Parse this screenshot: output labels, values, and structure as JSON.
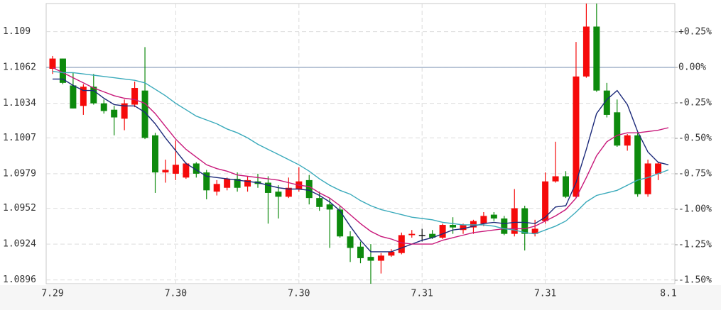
{
  "chart_data": {
    "type": "candlestick",
    "categories": [
      "7.29",
      null,
      null,
      null,
      null,
      null,
      null,
      null,
      null,
      null,
      null,
      null,
      "7.30",
      null,
      null,
      null,
      null,
      null,
      null,
      null,
      null,
      null,
      null,
      null,
      "7.30",
      null,
      null,
      null,
      null,
      null,
      null,
      null,
      null,
      null,
      null,
      null,
      "7.31",
      null,
      null,
      null,
      null,
      null,
      null,
      null,
      null,
      null,
      null,
      null,
      "7.31",
      null,
      null,
      null,
      null,
      null,
      null,
      null,
      null,
      null,
      null,
      null,
      "8.1"
    ],
    "open": [
      1.1061,
      1.1069,
      1.1048,
      1.1032,
      1.1047,
      1.1034,
      1.1029,
      1.1022,
      1.1033,
      1.1044,
      1.1009,
      1.098,
      1.0979,
      1.0976,
      1.0987,
      1.098,
      1.0965,
      1.0968,
      1.0975,
      1.0969,
      1.0973,
      1.0972,
      1.0965,
      1.0961,
      1.0967,
      1.0974,
      1.096,
      1.0955,
      1.0951,
      1.093,
      1.0922,
      1.0914,
      1.0911,
      1.0915,
      1.0917,
      1.0931,
      1.0931,
      1.0932,
      1.0929,
      1.0939,
      1.0935,
      1.0937,
      1.094,
      1.0947,
      1.0944,
      1.0932,
      1.0952,
      1.0932,
      1.0942,
      1.0973,
      1.0977,
      1.0961,
      1.1055,
      1.1094,
      1.1044,
      1.1027,
      1.1001,
      1.1009,
      1.0963,
      1.0979,
      null
    ],
    "high": [
      1.1071,
      1.1069,
      1.1058,
      1.1049,
      1.1057,
      1.1037,
      1.1032,
      1.1037,
      1.1051,
      1.1078,
      1.1011,
      1.099,
      1.1005,
      1.0988,
      1.0988,
      1.0982,
      1.0974,
      1.0976,
      1.098,
      1.0977,
      1.0979,
      1.0977,
      1.097,
      1.0976,
      1.0984,
      1.0978,
      1.0965,
      1.096,
      1.0954,
      1.0934,
      1.0926,
      1.0924,
      1.0917,
      1.092,
      1.0933,
      1.0935,
      1.0936,
      1.0935,
      1.094,
      1.0945,
      1.094,
      1.0943,
      1.0949,
      1.0949,
      1.0946,
      1.0967,
      1.0954,
      1.0943,
      1.098,
      1.1004,
      1.0981,
      1.1082,
      1.1112,
      1.1112,
      1.105,
      1.1037,
      1.101,
      1.1011,
      1.099,
      1.0988,
      null
    ],
    "low": [
      1.1057,
      1.1049,
      1.103,
      1.1025,
      1.1033,
      1.1026,
      1.1009,
      1.1013,
      1.1031,
      1.1006,
      1.0964,
      1.0972,
      1.0974,
      1.0975,
      1.0976,
      1.0959,
      1.0962,
      1.0966,
      1.0965,
      1.0965,
      1.0968,
      1.094,
      1.0944,
      1.096,
      1.0965,
      1.0955,
      1.095,
      1.0921,
      1.0929,
      1.091,
      1.0909,
      1.0893,
      1.0901,
      1.0914,
      1.0916,
      1.0929,
      1.0926,
      1.0928,
      1.0928,
      1.0932,
      1.0932,
      1.0932,
      1.0938,
      1.0942,
      1.0931,
      1.093,
      1.0919,
      1.093,
      1.094,
      1.0972,
      1.096,
      1.096,
      1.1054,
      1.1043,
      1.1023,
      1.1,
      1.0997,
      1.0961,
      1.0961,
      1.0974,
      null
    ],
    "close": [
      1.1069,
      1.105,
      1.103,
      1.1047,
      1.1034,
      1.1028,
      1.1023,
      1.1034,
      1.1046,
      1.1007,
      1.098,
      1.0982,
      1.0986,
      1.0987,
      1.0979,
      1.0966,
      1.0971,
      1.0975,
      1.0968,
      1.0974,
      1.0971,
      1.0964,
      1.0961,
      1.0968,
      1.0973,
      1.096,
      1.0953,
      1.0951,
      1.093,
      1.0921,
      1.0913,
      1.0911,
      1.0915,
      1.0918,
      1.0931,
      1.0932,
      1.0931,
      1.0929,
      1.0939,
      1.0937,
      1.0939,
      1.0942,
      1.0946,
      1.0944,
      1.0932,
      1.0952,
      1.0932,
      1.0936,
      1.0973,
      1.0977,
      1.0961,
      1.1055,
      1.1094,
      1.1044,
      1.1025,
      1.1001,
      1.1009,
      1.0963,
      1.0987,
      1.0987,
      null
    ],
    "up_color": "#f50a0a",
    "down_color": "#0d8a0d",
    "flat_color": "#111111",
    "lines": [
      {
        "color": "#1c2a7a",
        "values": [
          1.1053,
          1.1053,
          1.1048,
          1.1044,
          1.1044,
          1.1038,
          1.1033,
          1.1032,
          1.1032,
          1.1027,
          1.1018,
          1.1007,
          1.0997,
          1.0987,
          1.0982,
          1.0977,
          1.0976,
          1.0975,
          1.0974,
          1.0973,
          1.0972,
          1.097,
          1.0968,
          1.0967,
          1.0967,
          1.0966,
          1.0962,
          1.0957,
          1.095,
          1.0938,
          1.0927,
          1.0918,
          1.0918,
          1.0918,
          1.0921,
          1.0924,
          1.0927,
          1.0929,
          1.0932,
          1.0935,
          1.0936,
          1.0938,
          1.094,
          1.0941,
          1.094,
          1.0941,
          1.0941,
          1.094,
          1.0945,
          1.0953,
          1.0954,
          1.0972,
          1.0998,
          1.1026,
          1.1037,
          1.1044,
          1.1033,
          1.1012,
          1.0996,
          1.0988,
          1.0986
        ]
      },
      {
        "color": "#c8187a",
        "values": [
          1.1062,
          1.1058,
          1.1054,
          1.105,
          1.1046,
          1.1043,
          1.104,
          1.1038,
          1.1037,
          1.1034,
          1.1026,
          1.1016,
          1.1006,
          1.0998,
          1.0992,
          1.0986,
          1.0983,
          1.0981,
          1.0978,
          1.0977,
          1.0976,
          1.0975,
          1.0974,
          1.0972,
          1.097,
          1.0969,
          1.0964,
          1.096,
          1.0954,
          1.0947,
          1.094,
          1.0934,
          1.093,
          1.0928,
          1.0925,
          1.0924,
          1.0924,
          1.0924,
          1.0927,
          1.0929,
          1.0931,
          1.0933,
          1.0934,
          1.0935,
          1.0936,
          1.0936,
          1.0936,
          1.0938,
          1.0942,
          1.0946,
          1.0951,
          1.096,
          1.0976,
          1.0993,
          1.1004,
          1.1009,
          1.1011,
          1.1011,
          1.1012,
          1.1013,
          1.1015
        ]
      },
      {
        "color": "#3aaabb",
        "values": [
          1.1059,
          1.1058,
          1.1058,
          1.1057,
          1.1056,
          1.1055,
          1.1054,
          1.1053,
          1.1052,
          1.105,
          1.1045,
          1.104,
          1.1034,
          1.1029,
          1.1024,
          1.1021,
          1.1018,
          1.1014,
          1.1011,
          1.1007,
          1.1002,
          1.0998,
          1.0994,
          1.099,
          1.0986,
          1.0981,
          1.0975,
          1.097,
          1.0966,
          1.0963,
          1.0958,
          1.0954,
          1.0951,
          1.0949,
          1.0947,
          1.0945,
          1.0944,
          1.0943,
          1.0941,
          1.094,
          1.0939,
          1.0939,
          1.0939,
          1.0938,
          1.0936,
          1.0935,
          1.0933,
          1.0932,
          1.0935,
          1.0938,
          1.0942,
          1.0949,
          1.0957,
          1.0962,
          1.0964,
          1.0966,
          1.097,
          1.0974,
          1.0976,
          1.0979,
          1.0982
        ]
      }
    ],
    "ylim": [
      1.0893,
      1.1112
    ],
    "yticks": [
      1.0896,
      1.0924,
      1.0952,
      1.0979,
      1.1007,
      1.1034,
      1.1062,
      1.109
    ],
    "y2lim": [
      -1.525,
      0.45
    ],
    "y2ticks": [
      {
        "value": 0.25,
        "label": "+0.25%"
      },
      {
        "value": 0,
        "label": "0.00%"
      },
      {
        "value": -0.25,
        "label": "-0.25%"
      },
      {
        "value": -0.5,
        "label": "-0.50%"
      },
      {
        "value": -0.75,
        "label": "-0.75%"
      },
      {
        "value": -1,
        "label": "-1.00%"
      },
      {
        "value": -1.25,
        "label": "-1.25%"
      },
      {
        "value": -1.5,
        "label": "-1.50%"
      }
    ],
    "baseline": {
      "axis": "y2",
      "value": 0,
      "color": "#a4b4ca"
    },
    "grid": true
  }
}
